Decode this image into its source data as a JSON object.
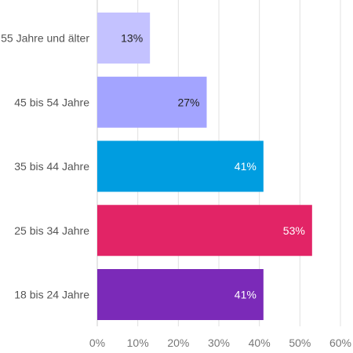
{
  "chart_data": {
    "type": "bar",
    "orientation": "horizontal",
    "categories": [
      "55 Jahre und älter",
      "45 bis 54 Jahre",
      "35 bis 44 Jahre",
      "25 bis 34 Jahre",
      "18 bis 24 Jahre"
    ],
    "values": [
      13,
      27,
      41,
      53,
      41
    ],
    "value_labels": [
      "13%",
      "27%",
      "41%",
      "53%",
      "41%"
    ],
    "bar_colors": [
      "#c4c2ff",
      "#a3a4ff",
      "#009de0",
      "#e22466",
      "#7b2ab8"
    ],
    "label_colors": [
      "#222222",
      "#222222",
      "#ffffff",
      "#ffffff",
      "#ffffff"
    ],
    "xlim": [
      0,
      60
    ],
    "x_ticks": [
      0,
      10,
      20,
      30,
      40,
      50,
      60
    ],
    "x_tick_labels": [
      "0%",
      "10%",
      "20%",
      "30%",
      "40%",
      "50%",
      "60%"
    ],
    "grid": true,
    "legend": false
  }
}
